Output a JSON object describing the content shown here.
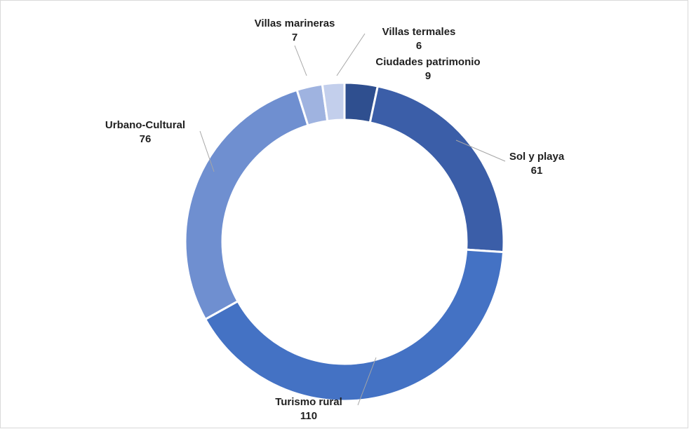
{
  "chart_data": {
    "type": "pie",
    "variant": "doughnut",
    "title": "",
    "slices": [
      {
        "label": "Ciudades patrimonio",
        "value": 9,
        "color": "#2f4f8f"
      },
      {
        "label": "Sol y playa",
        "value": 61,
        "color": "#3b5ea8"
      },
      {
        "label": "Turismo rural",
        "value": 110,
        "color": "#4472c4"
      },
      {
        "label": "Urbano-Cultural",
        "value": 76,
        "color": "#6f8fd0"
      },
      {
        "label": "Villas marineras",
        "value": 7,
        "color": "#9fb3e0"
      },
      {
        "label": "Villas termales",
        "value": 6,
        "color": "#c3cfec"
      }
    ],
    "start_angle": "top, clockwise",
    "legend": "none",
    "data_labels": "category name and value"
  }
}
